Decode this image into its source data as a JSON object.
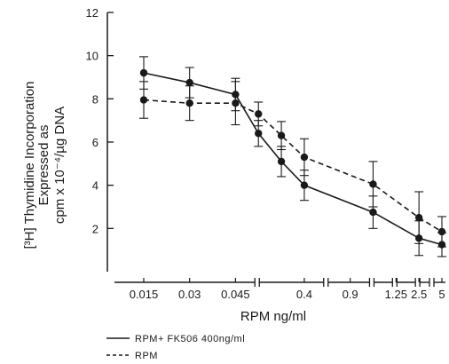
{
  "chart_data": {
    "type": "line",
    "xlabel": "RPM ng/ml",
    "ylabel_lines": [
      "[³H] Thymidine Incorporation",
      "Expressed as",
      "cpm x 10⁻⁴/µg DNA"
    ],
    "ylim": [
      0,
      12
    ],
    "yticks": [
      "2",
      "4",
      "6",
      "8",
      "10",
      "12"
    ],
    "x_ticks": [
      "0.015",
      "0.03",
      "0.045",
      "0.4",
      "0.9",
      "1.25",
      "2.5",
      "5"
    ],
    "x_ordinal": [
      1,
      2,
      3,
      3.5,
      4,
      4.5,
      5,
      5.5,
      6,
      6.5,
      7,
      7.5
    ],
    "grid": false,
    "legend_position": "bottom-left",
    "series": [
      {
        "name": "RPM+ FK506 400ng/ml",
        "line": "solid",
        "values": [
          9.2,
          8.75,
          8.2,
          6.4,
          5.1,
          4.0,
          2.75,
          1.55,
          1.25
        ],
        "err": [
          0.75,
          0.7,
          0.75,
          0.6,
          0.7,
          0.7,
          0.75,
          0.8,
          0.55
        ],
        "x_index": [
          0,
          1,
          2,
          3,
          4,
          5,
          8,
          10,
          11
        ]
      },
      {
        "name": "RPM",
        "line": "dashed",
        "values": [
          7.95,
          7.8,
          7.8,
          7.3,
          6.3,
          5.3,
          4.05,
          2.5,
          1.85
        ],
        "err": [
          0.85,
          0.8,
          1.0,
          0.55,
          0.65,
          0.85,
          1.05,
          1.2,
          0.7
        ],
        "x_index": [
          0,
          1,
          2,
          3,
          4,
          5,
          8,
          10,
          11
        ]
      }
    ]
  }
}
